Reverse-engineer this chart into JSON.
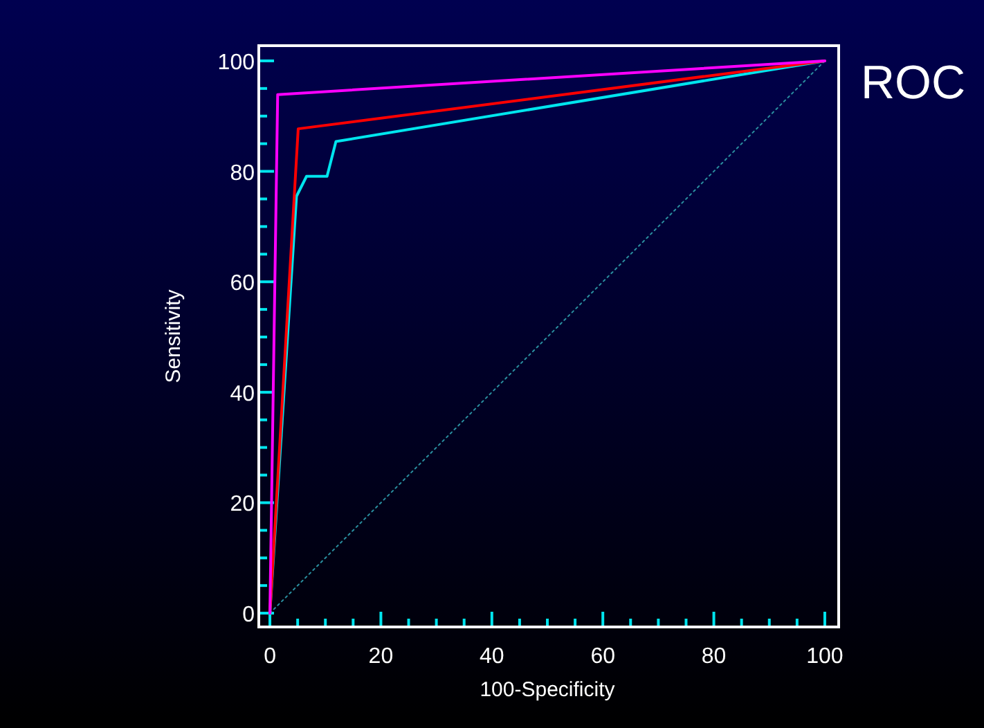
{
  "chart_data": {
    "type": "line",
    "title": "ROC",
    "xlabel": "100-Specificity",
    "ylabel": "Sensitivity",
    "xlim": [
      -2,
      102.5
    ],
    "ylim": [
      -2.5,
      102.75
    ],
    "xticks": [
      0,
      {
        "value": 5,
        "label": null
      },
      {
        "value": 10,
        "label": null
      },
      {
        "value": 15,
        "label": null
      },
      20,
      {
        "value": 25,
        "label": null
      },
      {
        "value": 30,
        "label": null
      },
      {
        "value": 35,
        "label": null
      },
      40,
      {
        "value": 45,
        "label": null
      },
      {
        "value": 50,
        "label": null
      },
      {
        "value": 55,
        "label": null
      },
      60,
      {
        "value": 65,
        "label": null
      },
      {
        "value": 70,
        "label": null
      },
      {
        "value": 75,
        "label": null
      },
      80,
      {
        "value": 85,
        "label": null
      },
      {
        "value": 90,
        "label": null
      },
      {
        "value": 95,
        "label": null
      },
      100
    ],
    "yticks": [
      0,
      {
        "value": 5,
        "label": null
      },
      {
        "value": 10,
        "label": null
      },
      {
        "value": 15,
        "label": null
      },
      20,
      {
        "value": 25,
        "label": null
      },
      {
        "value": 30,
        "label": null
      },
      {
        "value": 35,
        "label": null
      },
      40,
      {
        "value": 45,
        "label": null
      },
      {
        "value": 50,
        "label": null
      },
      {
        "value": 55,
        "label": null
      },
      60,
      {
        "value": 65,
        "label": null
      },
      {
        "value": 70,
        "label": null
      },
      {
        "value": 75,
        "label": null
      },
      80,
      {
        "value": 85,
        "label": null
      },
      {
        "value": 90,
        "label": null
      },
      {
        "value": 95,
        "label": null
      },
      100
    ],
    "grid": false,
    "marker": "none",
    "series": [
      {
        "color": "#2a8fa0",
        "x": [
          0,
          100
        ],
        "values": [
          0,
          100
        ],
        "line_style": "dotted"
      },
      {
        "color": "#00e5ee",
        "x": [
          0,
          4.8,
          6.6,
          10.3,
          11.9,
          100
        ],
        "values": [
          0,
          75.5,
          79.1,
          79.1,
          85.4,
          100
        ]
      },
      {
        "color": "#ff0000",
        "x": [
          0,
          5.1,
          100
        ],
        "values": [
          0,
          87.7,
          100
        ]
      },
      {
        "color": "#ff00ff",
        "x": [
          0,
          1.4,
          100
        ],
        "values": [
          0,
          93.9,
          100
        ]
      }
    ]
  }
}
